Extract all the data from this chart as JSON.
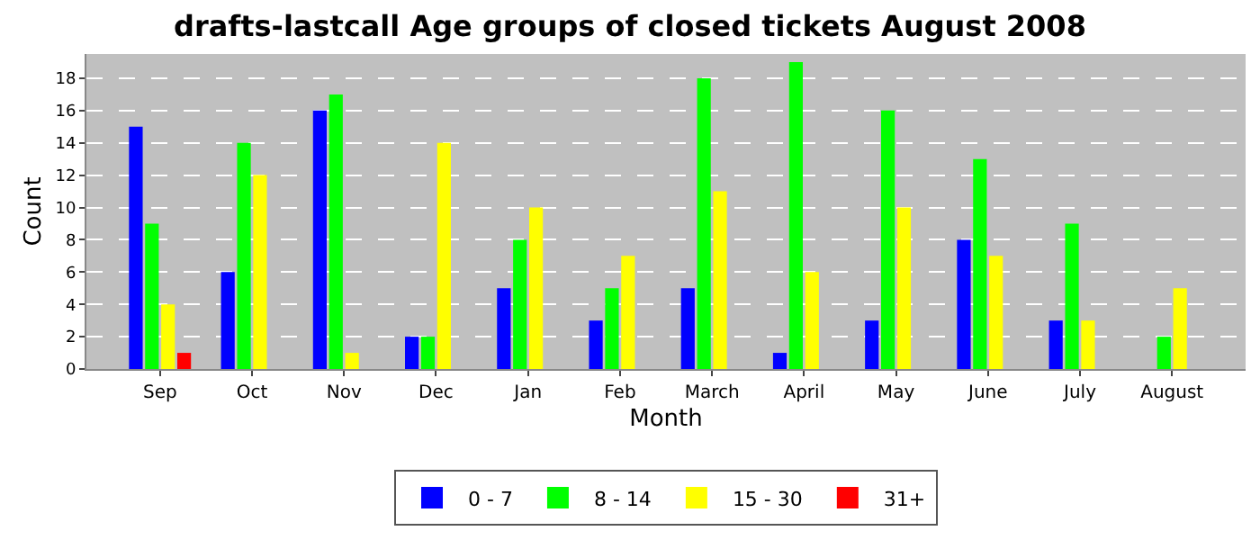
{
  "chart_data": {
    "type": "bar",
    "title": "drafts-lastcall Age groups of closed tickets August 2008",
    "xlabel": "Month",
    "ylabel": "Count",
    "categories": [
      "Sep",
      "Oct",
      "Nov",
      "Dec",
      "Jan",
      "Feb",
      "March",
      "April",
      "May",
      "June",
      "July",
      "August"
    ],
    "series": [
      {
        "name": "0 - 7",
        "color": "#0000ff",
        "values": [
          15,
          6,
          16,
          2,
          5,
          3,
          5,
          1,
          3,
          8,
          3,
          0
        ]
      },
      {
        "name": "8 - 14",
        "color": "#00ff00",
        "values": [
          9,
          14,
          17,
          2,
          8,
          5,
          18,
          19,
          16,
          13,
          9,
          2
        ]
      },
      {
        "name": "15 - 30",
        "color": "#ffff00",
        "values": [
          4,
          12,
          1,
          14,
          10,
          7,
          11,
          6,
          10,
          7,
          3,
          5
        ]
      },
      {
        "name": "31+",
        "color": "#ff0000",
        "values": [
          1,
          0,
          0,
          0,
          0,
          0,
          0,
          0,
          0,
          0,
          0,
          0
        ]
      }
    ],
    "ylim": [
      0,
      19.5
    ],
    "yticks": [
      0,
      2,
      4,
      6,
      8,
      10,
      12,
      14,
      16,
      18
    ],
    "grid": "y",
    "legend": "bottom"
  }
}
